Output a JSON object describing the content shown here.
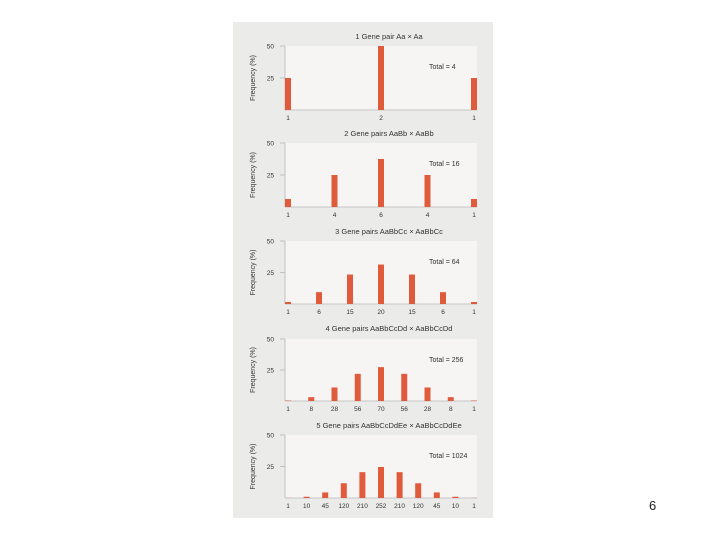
{
  "slide": {
    "page_number": "6"
  },
  "colors": {
    "bar": "#e05a3c",
    "panel": "#f6f5f3",
    "axis": "#b8b8b8",
    "text": "#333333",
    "figure_bg": "#ebebea"
  },
  "chart_data": [
    {
      "type": "bar",
      "title": "1 Gene pair Aa × Aa",
      "ylabel": "Frequency (%)",
      "ylim": [
        0,
        50
      ],
      "yticks": [
        25,
        50
      ],
      "categories": [
        "1",
        "2",
        "1"
      ],
      "values": [
        25,
        50,
        25
      ],
      "annotation": "Total = 4",
      "grid": false
    },
    {
      "type": "bar",
      "title": "2 Gene pairs AaBb × AaBb",
      "ylabel": "Frequency (%)",
      "ylim": [
        0,
        50
      ],
      "yticks": [
        25,
        50
      ],
      "categories": [
        "1",
        "4",
        "6",
        "4",
        "1"
      ],
      "values": [
        6.25,
        25,
        37.5,
        25,
        6.25
      ],
      "annotation": "Total = 16",
      "grid": false
    },
    {
      "type": "bar",
      "title": "3 Gene pairs AaBbCc × AaBbCc",
      "ylabel": "Frequency (%)",
      "ylim": [
        0,
        50
      ],
      "yticks": [
        25,
        50
      ],
      "categories": [
        "1",
        "6",
        "15",
        "20",
        "15",
        "6",
        "1"
      ],
      "values": [
        1.6,
        9.4,
        23.4,
        31.3,
        23.4,
        9.4,
        1.6
      ],
      "annotation": "Total = 64",
      "grid": false
    },
    {
      "type": "bar",
      "title": "4 Gene pairs AaBbCcDd × AaBbCcDd",
      "ylabel": "Frequency (%)",
      "ylim": [
        0,
        50
      ],
      "yticks": [
        25,
        50
      ],
      "categories": [
        "1",
        "8",
        "28",
        "56",
        "70",
        "56",
        "28",
        "8",
        "1"
      ],
      "values": [
        0.4,
        3.1,
        10.9,
        21.9,
        27.3,
        21.9,
        10.9,
        3.1,
        0.4
      ],
      "annotation": "Total = 256",
      "grid": false
    },
    {
      "type": "bar",
      "title": "5 Gene pairs AaBbCcDdEe × AaBbCcDdEe",
      "ylabel": "Frequency (%)",
      "ylim": [
        0,
        50
      ],
      "yticks": [
        25,
        50
      ],
      "categories": [
        "1",
        "10",
        "45",
        "120",
        "210",
        "252",
        "210",
        "120",
        "45",
        "10",
        "1"
      ],
      "values": [
        0.1,
        1.0,
        4.4,
        11.7,
        20.5,
        24.6,
        20.5,
        11.7,
        4.4,
        1.0,
        0.1
      ],
      "annotation": "Total = 1024",
      "grid": false
    }
  ]
}
